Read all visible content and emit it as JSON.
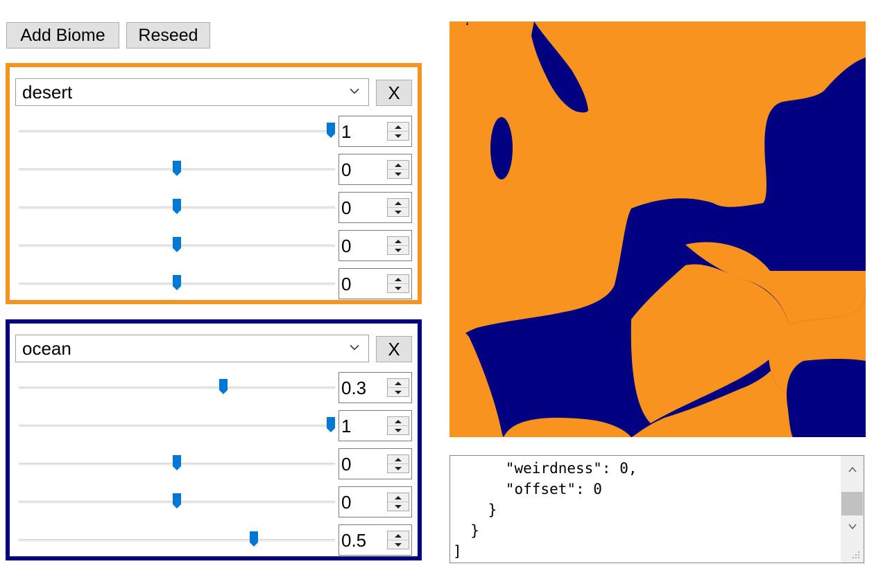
{
  "toolbar": {
    "add_biome_label": "Add Biome",
    "reseed_label": "Reseed"
  },
  "biomes": [
    {
      "name": "desert",
      "color": "#f7931e",
      "remove_label": "X",
      "params": [
        {
          "value": "1",
          "fraction": 1.0
        },
        {
          "value": "0",
          "fraction": 0.5
        },
        {
          "value": "0",
          "fraction": 0.5
        },
        {
          "value": "0",
          "fraction": 0.5
        },
        {
          "value": "0",
          "fraction": 0.5
        }
      ]
    },
    {
      "name": "ocean",
      "color": "#000080",
      "remove_label": "X",
      "params": [
        {
          "value": "0.3",
          "fraction": 0.65
        },
        {
          "value": "1",
          "fraction": 1.0
        },
        {
          "value": "0",
          "fraction": 0.5
        },
        {
          "value": "0",
          "fraction": 0.5
        },
        {
          "value": "0.5",
          "fraction": 0.75
        }
      ]
    }
  ],
  "json_output": {
    "lines": [
      "      \"weirdness\": 0,",
      "      \"offset\": 0",
      "    }",
      "  }",
      "]"
    ]
  },
  "colors": {
    "desert": "#f7931e",
    "ocean": "#000080",
    "slider_thumb": "#0078d7"
  }
}
